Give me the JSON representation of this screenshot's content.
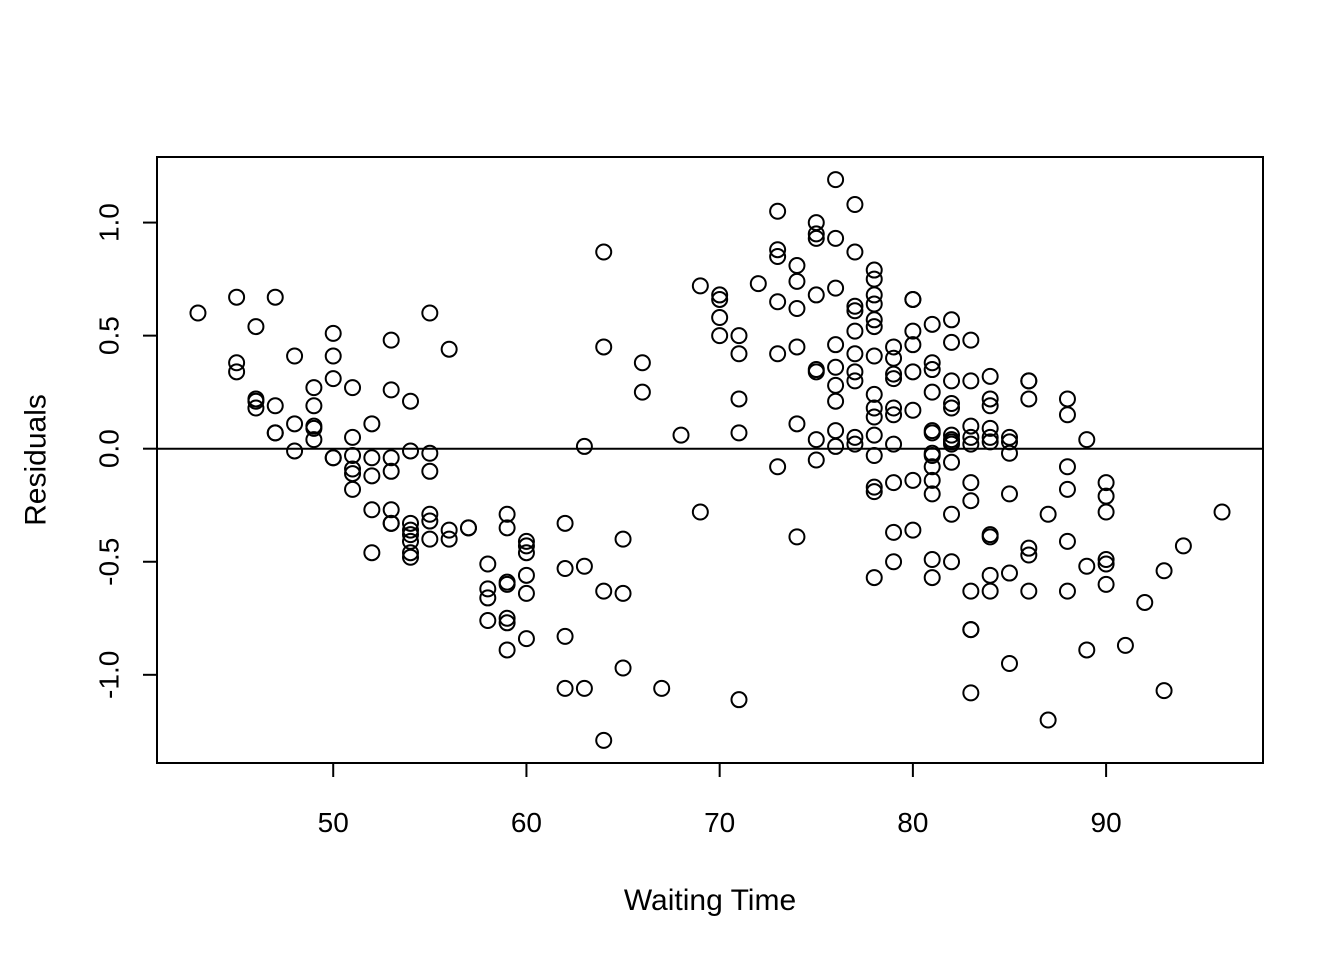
{
  "chart_data": {
    "type": "scatter",
    "title": "",
    "xlabel": "Waiting Time",
    "ylabel": "Residuals",
    "xlim": [
      40.88,
      98.12
    ],
    "ylim": [
      -1.39,
      1.29
    ],
    "x_ticks": [
      50,
      60,
      70,
      80,
      90
    ],
    "y_ticks": [
      -1.0,
      -0.5,
      0.0,
      0.5,
      1.0
    ],
    "x_tick_labels": [
      "50",
      "60",
      "70",
      "80",
      "90"
    ],
    "y_tick_labels": [
      "-1.0",
      "-0.5",
      "0.0",
      "0.5",
      "1.0"
    ],
    "reference_line_y": 0,
    "grid": false,
    "legend": "none",
    "marker": "open-circle",
    "colors": {
      "points": "#000000",
      "axes": "#000000",
      "background": "#ffffff"
    },
    "points": [
      [
        43,
        0.6
      ],
      [
        45,
        0.67
      ],
      [
        45,
        0.38
      ],
      [
        45,
        0.34
      ],
      [
        46,
        0.54
      ],
      [
        46,
        0.22
      ],
      [
        46,
        0.21
      ],
      [
        46,
        0.18
      ],
      [
        47,
        0.67
      ],
      [
        47,
        0.19
      ],
      [
        47,
        0.07
      ],
      [
        47,
        0.07
      ],
      [
        48,
        0.41
      ],
      [
        48,
        0.11
      ],
      [
        48,
        -0.01
      ],
      [
        49,
        0.27
      ],
      [
        49,
        0.19
      ],
      [
        49,
        0.1
      ],
      [
        49,
        0.09
      ],
      [
        49,
        0.04
      ],
      [
        50,
        0.51
      ],
      [
        50,
        0.41
      ],
      [
        50,
        0.31
      ],
      [
        50,
        -0.04
      ],
      [
        50,
        -0.04
      ],
      [
        51,
        0.27
      ],
      [
        51,
        0.05
      ],
      [
        51,
        -0.03
      ],
      [
        51,
        -0.09
      ],
      [
        51,
        -0.11
      ],
      [
        51,
        -0.18
      ],
      [
        52,
        0.11
      ],
      [
        52,
        -0.04
      ],
      [
        52,
        -0.12
      ],
      [
        52,
        -0.27
      ],
      [
        52,
        -0.46
      ],
      [
        53,
        0.48
      ],
      [
        53,
        0.26
      ],
      [
        53,
        -0.04
      ],
      [
        53,
        -0.1
      ],
      [
        53,
        -0.27
      ],
      [
        53,
        -0.33
      ],
      [
        53,
        -0.33
      ],
      [
        54,
        0.21
      ],
      [
        54,
        -0.01
      ],
      [
        54,
        -0.33
      ],
      [
        54,
        -0.36
      ],
      [
        54,
        -0.38
      ],
      [
        54,
        -0.41
      ],
      [
        54,
        -0.46
      ],
      [
        54,
        -0.48
      ],
      [
        55,
        0.6
      ],
      [
        55,
        -0.02
      ],
      [
        55,
        -0.1
      ],
      [
        55,
        -0.29
      ],
      [
        55,
        -0.32
      ],
      [
        55,
        -0.4
      ],
      [
        56,
        0.44
      ],
      [
        56,
        -0.36
      ],
      [
        56,
        -0.4
      ],
      [
        57,
        -0.35
      ],
      [
        57,
        -0.35
      ],
      [
        58,
        -0.51
      ],
      [
        58,
        -0.62
      ],
      [
        58,
        -0.66
      ],
      [
        58,
        -0.76
      ],
      [
        59,
        -0.29
      ],
      [
        59,
        -0.35
      ],
      [
        59,
        -0.59
      ],
      [
        59,
        -0.6
      ],
      [
        59,
        -0.75
      ],
      [
        59,
        -0.77
      ],
      [
        59,
        -0.89
      ],
      [
        60,
        -0.41
      ],
      [
        60,
        -0.43
      ],
      [
        60,
        -0.46
      ],
      [
        60,
        -0.56
      ],
      [
        60,
        -0.64
      ],
      [
        60,
        -0.84
      ],
      [
        62,
        -0.33
      ],
      [
        62,
        -0.53
      ],
      [
        62,
        -0.83
      ],
      [
        62,
        -1.06
      ],
      [
        63,
        0.01
      ],
      [
        63,
        -0.52
      ],
      [
        63,
        -1.06
      ],
      [
        64,
        0.87
      ],
      [
        64,
        0.45
      ],
      [
        64,
        -0.63
      ],
      [
        64,
        -1.29
      ],
      [
        65,
        -0.4
      ],
      [
        65,
        -0.64
      ],
      [
        65,
        -0.97
      ],
      [
        66,
        0.38
      ],
      [
        66,
        0.25
      ],
      [
        67,
        -1.06
      ],
      [
        68,
        0.06
      ],
      [
        69,
        0.72
      ],
      [
        69,
        -0.28
      ],
      [
        70,
        0.68
      ],
      [
        70,
        0.66
      ],
      [
        70,
        0.58
      ],
      [
        70,
        0.5
      ],
      [
        71,
        0.5
      ],
      [
        71,
        0.42
      ],
      [
        71,
        0.22
      ],
      [
        71,
        0.07
      ],
      [
        71,
        -1.11
      ],
      [
        72,
        0.73
      ],
      [
        73,
        1.05
      ],
      [
        73,
        0.88
      ],
      [
        73,
        0.85
      ],
      [
        73,
        0.65
      ],
      [
        73,
        0.42
      ],
      [
        73,
        -0.08
      ],
      [
        74,
        0.81
      ],
      [
        74,
        0.74
      ],
      [
        74,
        0.62
      ],
      [
        74,
        0.45
      ],
      [
        74,
        0.11
      ],
      [
        74,
        -0.39
      ],
      [
        75,
        1.0
      ],
      [
        75,
        0.95
      ],
      [
        75,
        0.93
      ],
      [
        75,
        0.68
      ],
      [
        75,
        0.35
      ],
      [
        75,
        0.34
      ],
      [
        75,
        0.04
      ],
      [
        75,
        -0.05
      ],
      [
        76,
        1.19
      ],
      [
        76,
        0.93
      ],
      [
        76,
        0.71
      ],
      [
        76,
        0.46
      ],
      [
        76,
        0.36
      ],
      [
        76,
        0.28
      ],
      [
        76,
        0.21
      ],
      [
        76,
        0.08
      ],
      [
        76,
        0.01
      ],
      [
        77,
        1.08
      ],
      [
        77,
        0.87
      ],
      [
        77,
        0.63
      ],
      [
        77,
        0.61
      ],
      [
        77,
        0.52
      ],
      [
        77,
        0.42
      ],
      [
        77,
        0.34
      ],
      [
        77,
        0.3
      ],
      [
        77,
        0.05
      ],
      [
        77,
        0.02
      ],
      [
        78,
        0.79
      ],
      [
        78,
        0.75
      ],
      [
        78,
        0.68
      ],
      [
        78,
        0.64
      ],
      [
        78,
        0.57
      ],
      [
        78,
        0.54
      ],
      [
        78,
        0.41
      ],
      [
        78,
        0.24
      ],
      [
        78,
        0.18
      ],
      [
        78,
        0.14
      ],
      [
        78,
        0.06
      ],
      [
        78,
        -0.03
      ],
      [
        78,
        -0.17
      ],
      [
        78,
        -0.19
      ],
      [
        78,
        -0.57
      ],
      [
        79,
        0.45
      ],
      [
        79,
        0.4
      ],
      [
        79,
        0.33
      ],
      [
        79,
        0.31
      ],
      [
        79,
        0.18
      ],
      [
        79,
        0.15
      ],
      [
        79,
        0.02
      ],
      [
        79,
        -0.15
      ],
      [
        79,
        -0.37
      ],
      [
        79,
        -0.5
      ],
      [
        80,
        0.66
      ],
      [
        80,
        0.66
      ],
      [
        80,
        0.52
      ],
      [
        80,
        0.46
      ],
      [
        80,
        0.34
      ],
      [
        80,
        0.17
      ],
      [
        80,
        -0.14
      ],
      [
        80,
        -0.36
      ],
      [
        81,
        0.55
      ],
      [
        81,
        0.38
      ],
      [
        81,
        0.35
      ],
      [
        81,
        0.25
      ],
      [
        81,
        0.08
      ],
      [
        81,
        0.07
      ],
      [
        81,
        -0.02
      ],
      [
        81,
        -0.03
      ],
      [
        81,
        -0.08
      ],
      [
        81,
        -0.14
      ],
      [
        81,
        -0.2
      ],
      [
        81,
        -0.49
      ],
      [
        81,
        -0.57
      ],
      [
        82,
        0.57
      ],
      [
        82,
        0.47
      ],
      [
        82,
        0.3
      ],
      [
        82,
        0.2
      ],
      [
        82,
        0.18
      ],
      [
        82,
        0.06
      ],
      [
        82,
        0.04
      ],
      [
        82,
        0.03
      ],
      [
        82,
        0.02
      ],
      [
        82,
        -0.06
      ],
      [
        82,
        -0.29
      ],
      [
        82,
        -0.5
      ],
      [
        83,
        0.48
      ],
      [
        83,
        0.3
      ],
      [
        83,
        0.1
      ],
      [
        83,
        0.05
      ],
      [
        83,
        0.02
      ],
      [
        83,
        -0.15
      ],
      [
        83,
        -0.23
      ],
      [
        83,
        -0.63
      ],
      [
        83,
        -0.8
      ],
      [
        83,
        -0.8
      ],
      [
        83,
        -1.08
      ],
      [
        84,
        0.32
      ],
      [
        84,
        0.22
      ],
      [
        84,
        0.19
      ],
      [
        84,
        0.09
      ],
      [
        84,
        0.05
      ],
      [
        84,
        0.03
      ],
      [
        84,
        -0.38
      ],
      [
        84,
        -0.39
      ],
      [
        84,
        -0.56
      ],
      [
        84,
        -0.63
      ],
      [
        85,
        0.05
      ],
      [
        85,
        0.03
      ],
      [
        85,
        -0.02
      ],
      [
        85,
        -0.2
      ],
      [
        85,
        -0.55
      ],
      [
        85,
        -0.95
      ],
      [
        86,
        0.3
      ],
      [
        86,
        0.3
      ],
      [
        86,
        0.22
      ],
      [
        86,
        -0.44
      ],
      [
        86,
        -0.47
      ],
      [
        86,
        -0.63
      ],
      [
        87,
        -0.29
      ],
      [
        87,
        -1.2
      ],
      [
        88,
        0.22
      ],
      [
        88,
        0.15
      ],
      [
        88,
        -0.08
      ],
      [
        88,
        -0.18
      ],
      [
        88,
        -0.41
      ],
      [
        88,
        -0.63
      ],
      [
        89,
        0.04
      ],
      [
        89,
        -0.52
      ],
      [
        89,
        -0.89
      ],
      [
        90,
        -0.15
      ],
      [
        90,
        -0.21
      ],
      [
        90,
        -0.28
      ],
      [
        90,
        -0.49
      ],
      [
        90,
        -0.51
      ],
      [
        90,
        -0.6
      ],
      [
        91,
        -0.87
      ],
      [
        92,
        -0.68
      ],
      [
        93,
        -0.54
      ],
      [
        93,
        -1.07
      ],
      [
        94,
        -0.43
      ],
      [
        96,
        -0.28
      ]
    ]
  }
}
